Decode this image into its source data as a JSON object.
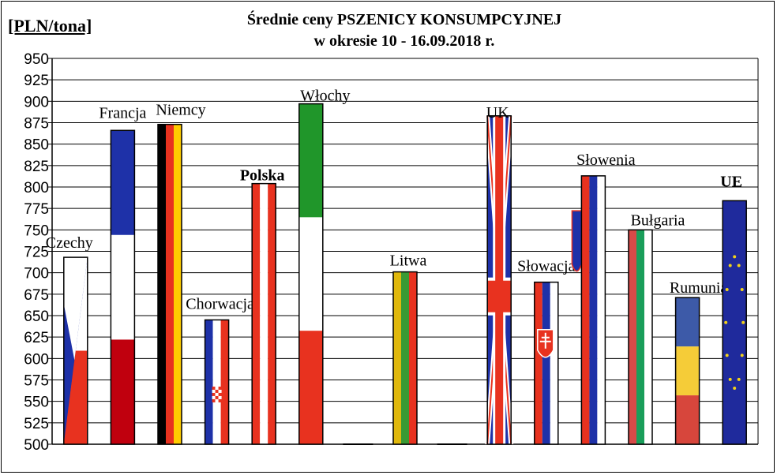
{
  "chart_data": {
    "type": "bar",
    "unit_label": "[PLN/tona]",
    "title_line1": "Średnie ceny PSZENICY  KONSUMPCYJNEJ",
    "title_line2": "w okresie  10 - 16.09.2018 r.",
    "ylim": [
      500,
      950
    ],
    "ytick_step": 25,
    "grid": true,
    "categories": [
      "Czechy",
      "Francja",
      "Niemcy",
      "Chorwacja",
      "Polska",
      "Włochy",
      "",
      "Litwa",
      "",
      "UK",
      "Słowacja",
      "Słowenia",
      "Bułgaria",
      "Rumunia",
      "UE"
    ],
    "values": [
      718,
      866,
      873,
      645,
      804,
      897,
      500,
      701,
      500,
      883,
      689,
      813,
      750,
      671,
      784
    ],
    "label_styles": {
      "Polska": {
        "bold": true
      },
      "UE": {
        "bold": true,
        "color": "#e00000"
      }
    },
    "colors": {
      "red": "#e8321f",
      "blue": "#1e31a8",
      "white": "#ffffff",
      "black": "#000000",
      "gold": "#ffcc00",
      "green": "#20962a",
      "dark_red": "#c0000e",
      "eu_blue": "#1f2a9c",
      "eu_star": "#f2d21a",
      "litwa_yellow": "#e0b80c",
      "litwa_green": "#3a9a34",
      "ro_blue": "#3d5aa8",
      "ro_yellow": "#f5cc38",
      "ro_red": "#d7463c",
      "bg_green": "#1a9e5a",
      "bg_red": "#d84a48"
    }
  }
}
